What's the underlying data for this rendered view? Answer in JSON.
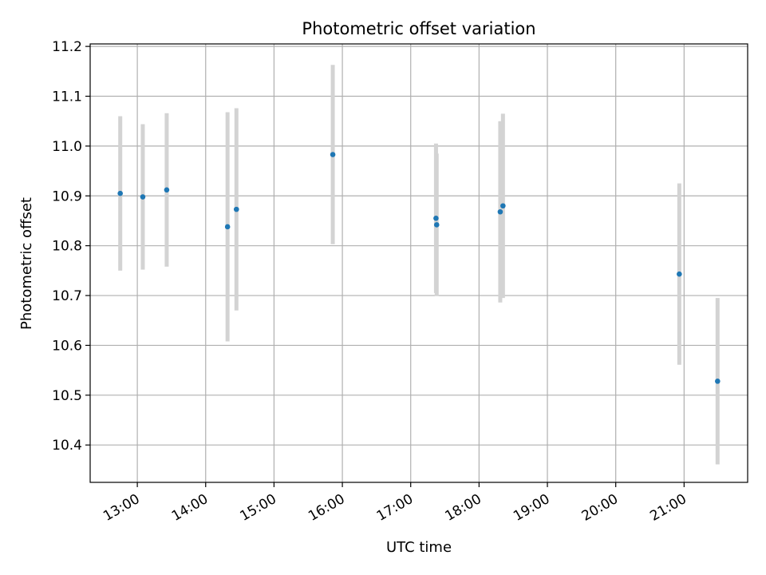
{
  "chart_data": {
    "type": "scatter",
    "title": "Photometric offset variation",
    "xlabel": "UTC time",
    "ylabel": "Photometric offset",
    "x_tick_labels": [
      "13:00",
      "14:00",
      "15:00",
      "16:00",
      "17:00",
      "18:00",
      "19:00",
      "20:00",
      "21:00"
    ],
    "y_tick_labels": [
      "10.4",
      "10.5",
      "10.6",
      "10.7",
      "10.8",
      "10.9",
      "11.0",
      "11.1",
      "11.2"
    ],
    "x_unit": "UTC hour",
    "xlim": [
      12.31,
      21.93
    ],
    "ylim": [
      10.325,
      11.205
    ],
    "grid": true,
    "x_tick_rotation": "30 degrees",
    "series": [
      {
        "points": [
          {
            "x": 12.75,
            "y": 10.905,
            "err": 0.155
          },
          {
            "x": 13.08,
            "y": 10.898,
            "err": 0.146
          },
          {
            "x": 13.43,
            "y": 10.912,
            "err": 0.154
          },
          {
            "x": 14.32,
            "y": 10.838,
            "err": 0.23
          },
          {
            "x": 14.45,
            "y": 10.873,
            "err": 0.203
          },
          {
            "x": 15.86,
            "y": 10.983,
            "err": 0.18
          },
          {
            "x": 17.37,
            "y": 10.855,
            "err": 0.15
          },
          {
            "x": 17.38,
            "y": 10.842,
            "err": 0.143
          },
          {
            "x": 18.31,
            "y": 10.868,
            "err": 0.182
          },
          {
            "x": 18.35,
            "y": 10.88,
            "err": 0.185
          },
          {
            "x": 20.93,
            "y": 10.743,
            "err": 0.182
          },
          {
            "x": 21.49,
            "y": 10.528,
            "err": 0.167
          }
        ]
      }
    ],
    "colors": {
      "point": "#1f77b4",
      "errorbar": "#d3d3d3",
      "grid": "#b0b0b0",
      "axes": "#000000"
    }
  }
}
